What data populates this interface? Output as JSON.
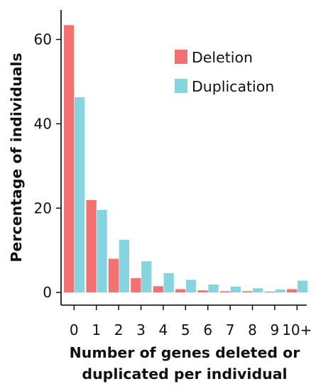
{
  "chart_data": {
    "type": "bar",
    "categories": [
      "0",
      "1",
      "2",
      "3",
      "4",
      "5",
      "6",
      "7",
      "8",
      "9",
      "10+"
    ],
    "series": [
      {
        "name": "Deletion",
        "color": "#F27171",
        "values": [
          63.4,
          21.9,
          8.0,
          3.4,
          1.5,
          0.8,
          0.5,
          0.3,
          0.3,
          0.2,
          0.8
        ]
      },
      {
        "name": "Duplication",
        "color": "#86D4E0",
        "values": [
          46.3,
          19.6,
          12.5,
          7.4,
          4.6,
          3.0,
          1.9,
          1.4,
          1.0,
          0.7,
          2.8
        ]
      }
    ],
    "xlabel": [
      "Number of genes deleted or",
      "duplicated per individual"
    ],
    "ylabel": "Percentage of individuals",
    "ylim": [
      -3,
      67
    ],
    "yticks": [
      0,
      20,
      40,
      60
    ],
    "legend_position": "top-right",
    "grid": false
  }
}
